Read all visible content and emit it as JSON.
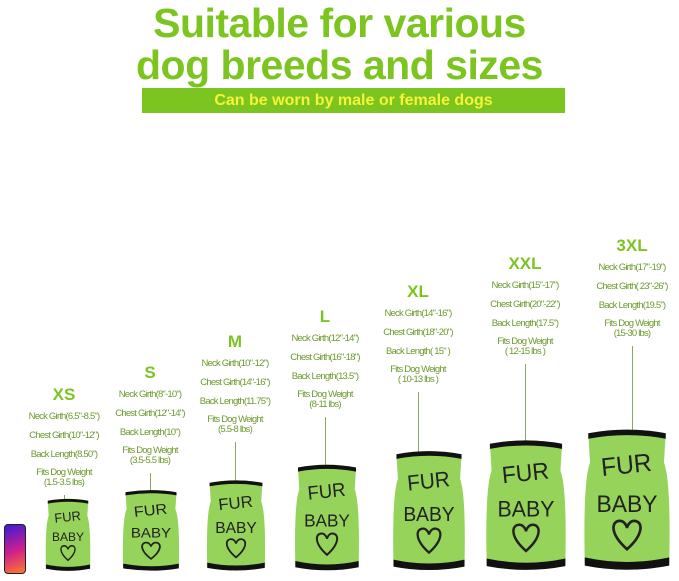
{
  "header": {
    "title_line1": "Suitable for various",
    "title_line2": "dog breeds and sizes",
    "banner": "Can be worn by male or female dogs"
  },
  "colors": {
    "accent": "#7cc520",
    "banner_text": "#f7f23a",
    "shirt": "#95d35a"
  },
  "shirt_print": {
    "line1": "FUR",
    "line2": "BABY",
    "icon": "heart-icon"
  },
  "sizes": [
    {
      "size": "XS",
      "neck": "Neck Girth(6.5\"-8.5\")",
      "chest": "Chest Girth(10\"-12\")",
      "back": "Back Length(8.50\")",
      "weight_label": "Fits Dog Weight",
      "weight": "(1.5-3.5 lbs)"
    },
    {
      "size": "S",
      "neck": "Neck Girth(8\"-10\")",
      "chest": "Chest Girth(12\"-14\")",
      "back": "Back Length(10\")",
      "weight_label": "Fits Dog Weight",
      "weight": "(3.5-5.5 lbs)"
    },
    {
      "size": "M",
      "neck": "Neck Girth(10\"-12\")",
      "chest": "Chest Girth(14\"-16\")",
      "back": "Back Length(11.75\")",
      "weight_label": "Fits Dog Weight",
      "weight": "(5.5-8 lbs)"
    },
    {
      "size": "L",
      "neck": "Neck Girth(12\"-14\")",
      "chest": "Chest Girth(16\"-18\")",
      "back": "Back Length(13.5\")",
      "weight_label": "Fits Dog Weight",
      "weight": "(8-11 lbs)"
    },
    {
      "size": "XL",
      "neck": "Neck Girth(14\"-16\")",
      "chest": "Chest Girth(18\"-20\")",
      "back": "Back Length( 15\" )",
      "weight_label": "Fits Dog Weight",
      "weight": "( 10-13 lbs )"
    },
    {
      "size": "XXL",
      "neck": "Neck Girth(15\"-17\")",
      "chest": "Chest Girth(20\"-22\")",
      "back": "Back Length(17.5\")",
      "weight_label": "Fits Dog Weight",
      "weight": "( 12-15 lbs )"
    },
    {
      "size": "3XL",
      "neck": "Neck Girth(17\"-19\")",
      "chest": "Chest Girth( 23\"-26\")",
      "back": "Back Length(19.5\")",
      "weight_label": "Fits Dog Weight",
      "weight": "(15-30 lbs)"
    }
  ]
}
